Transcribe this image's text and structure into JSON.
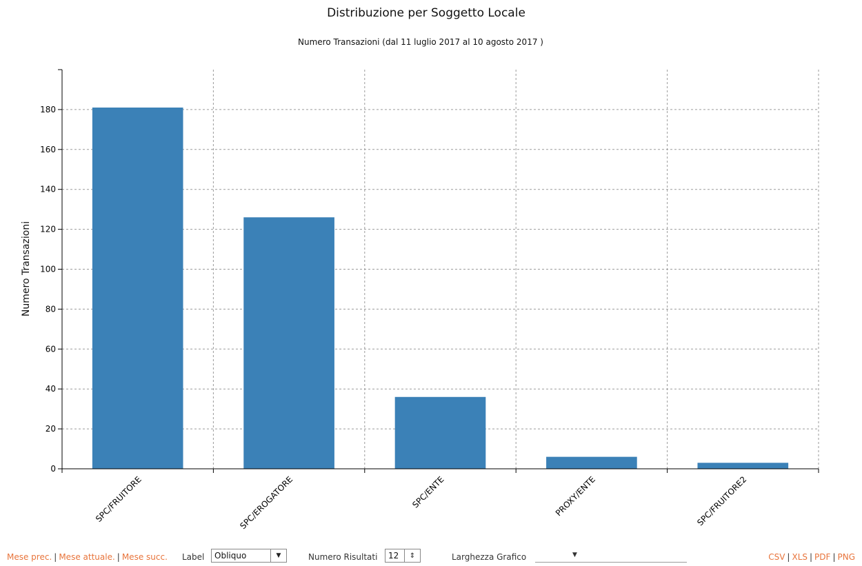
{
  "chart_data": {
    "type": "bar",
    "title": "Distribuzione per Soggetto Locale",
    "subtitle": "Numero Transazioni (dal 11 luglio 2017 al 10 agosto 2017 )",
    "ylabel": "Numero Transazioni",
    "xlabel": "",
    "categories": [
      "SPC/FRUITORE",
      "SPC/EROGATORE",
      "SPC/ENTE",
      "PROXY/ENTE",
      "SPC/FRUITORE2"
    ],
    "values": [
      181,
      126,
      36,
      6,
      3
    ],
    "ylim": [
      0,
      200
    ],
    "yticks": [
      0,
      20,
      40,
      60,
      80,
      100,
      120,
      140,
      160,
      180
    ],
    "grid": true,
    "bar_color": "#3b81b7"
  },
  "controls": {
    "nav": {
      "prev": "Mese prec.",
      "current": "Mese attuale.",
      "next": "Mese succ."
    },
    "label_label": "Label",
    "label_value": "Obliquo",
    "results_label": "Numero Risultati",
    "results_value": "12",
    "width_label": "Larghezza Grafico",
    "width_value": "",
    "export": {
      "csv": "CSV",
      "xls": "XLS",
      "pdf": "PDF",
      "png": "PNG"
    },
    "link_color": "#e8743b"
  }
}
